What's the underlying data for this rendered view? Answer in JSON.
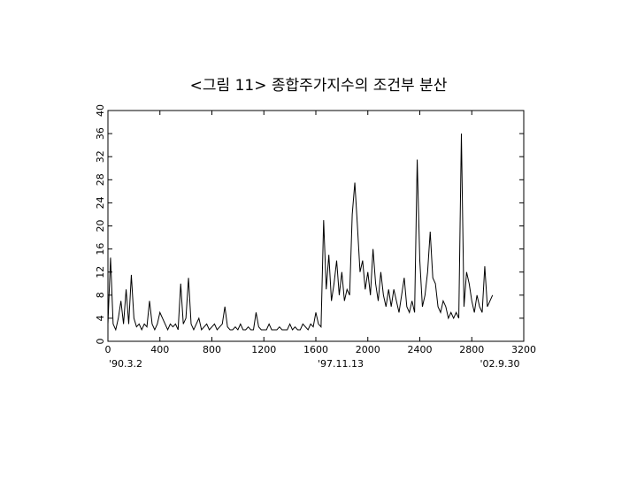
{
  "chart_data": {
    "type": "line",
    "title": "<그림 11> 종합주가지수의 조건부 분산",
    "annotations": [
      "'90.3.2",
      "'97.11.13",
      "'02.9.30"
    ],
    "color": "#000000",
    "xlim": [
      0,
      3200
    ],
    "xticks": [
      0,
      400,
      800,
      1200,
      1600,
      2000,
      2400,
      2800,
      3200
    ],
    "ylim": [
      0,
      40
    ],
    "yticks": [
      0,
      4,
      8,
      12,
      16,
      20,
      24,
      28,
      32,
      36,
      40
    ],
    "x": [
      0,
      20,
      40,
      60,
      80,
      100,
      120,
      140,
      160,
      180,
      200,
      220,
      240,
      260,
      280,
      300,
      320,
      340,
      360,
      380,
      400,
      420,
      440,
      460,
      480,
      500,
      520,
      540,
      560,
      580,
      600,
      620,
      640,
      660,
      680,
      700,
      720,
      740,
      760,
      780,
      800,
      820,
      840,
      860,
      880,
      900,
      920,
      940,
      960,
      980,
      1000,
      1020,
      1040,
      1060,
      1080,
      1100,
      1120,
      1140,
      1160,
      1180,
      1200,
      1220,
      1240,
      1260,
      1280,
      1300,
      1320,
      1340,
      1360,
      1380,
      1400,
      1420,
      1440,
      1460,
      1480,
      1500,
      1520,
      1540,
      1560,
      1580,
      1600,
      1620,
      1640,
      1660,
      1680,
      1700,
      1720,
      1740,
      1760,
      1780,
      1800,
      1820,
      1840,
      1860,
      1880,
      1900,
      1920,
      1940,
      1960,
      1980,
      2000,
      2020,
      2040,
      2060,
      2080,
      2100,
      2120,
      2140,
      2160,
      2180,
      2200,
      2220,
      2240,
      2260,
      2280,
      2300,
      2320,
      2340,
      2360,
      2380,
      2400,
      2420,
      2440,
      2460,
      2480,
      2500,
      2520,
      2540,
      2560,
      2580,
      2600,
      2620,
      2640,
      2660,
      2680,
      2700,
      2720,
      2740,
      2760,
      2780,
      2800,
      2820,
      2840,
      2860,
      2880,
      2900,
      2920,
      2940,
      2960
    ],
    "values": [
      3,
      14.5,
      3,
      2,
      4,
      7,
      3,
      9,
      3,
      11.5,
      4,
      2.5,
      3,
      2,
      3,
      2.5,
      7,
      3,
      2,
      3,
      5,
      4,
      3,
      2,
      3,
      2.5,
      3,
      2,
      10,
      3,
      4,
      11,
      3,
      2,
      3,
      4,
      2,
      2.5,
      3,
      2,
      2.5,
      3,
      2,
      2.5,
      3,
      6,
      2.5,
      2,
      2,
      2.5,
      2,
      3,
      2,
      2,
      2.5,
      2,
      2,
      5,
      2.5,
      2,
      2,
      2,
      3,
      2,
      2,
      2,
      2.5,
      2,
      2,
      2,
      3,
      2,
      2.5,
      2,
      2,
      3,
      2.5,
      2,
      3,
      2.5,
      5,
      3,
      2.5,
      21,
      9,
      15,
      7,
      10,
      14,
      8,
      12,
      7,
      9,
      8,
      22,
      27.5,
      20,
      12,
      14,
      9,
      12,
      8,
      16,
      10,
      7,
      12,
      8,
      6,
      9,
      6,
      9,
      7,
      5,
      8,
      11,
      6,
      5,
      7,
      5,
      31.5,
      14,
      6,
      8,
      12,
      19,
      11,
      10,
      6,
      5,
      7,
      6,
      4,
      5,
      4,
      5,
      4,
      36,
      6,
      12,
      10,
      7,
      5,
      8,
      6,
      5,
      13,
      6,
      7,
      8
    ]
  }
}
